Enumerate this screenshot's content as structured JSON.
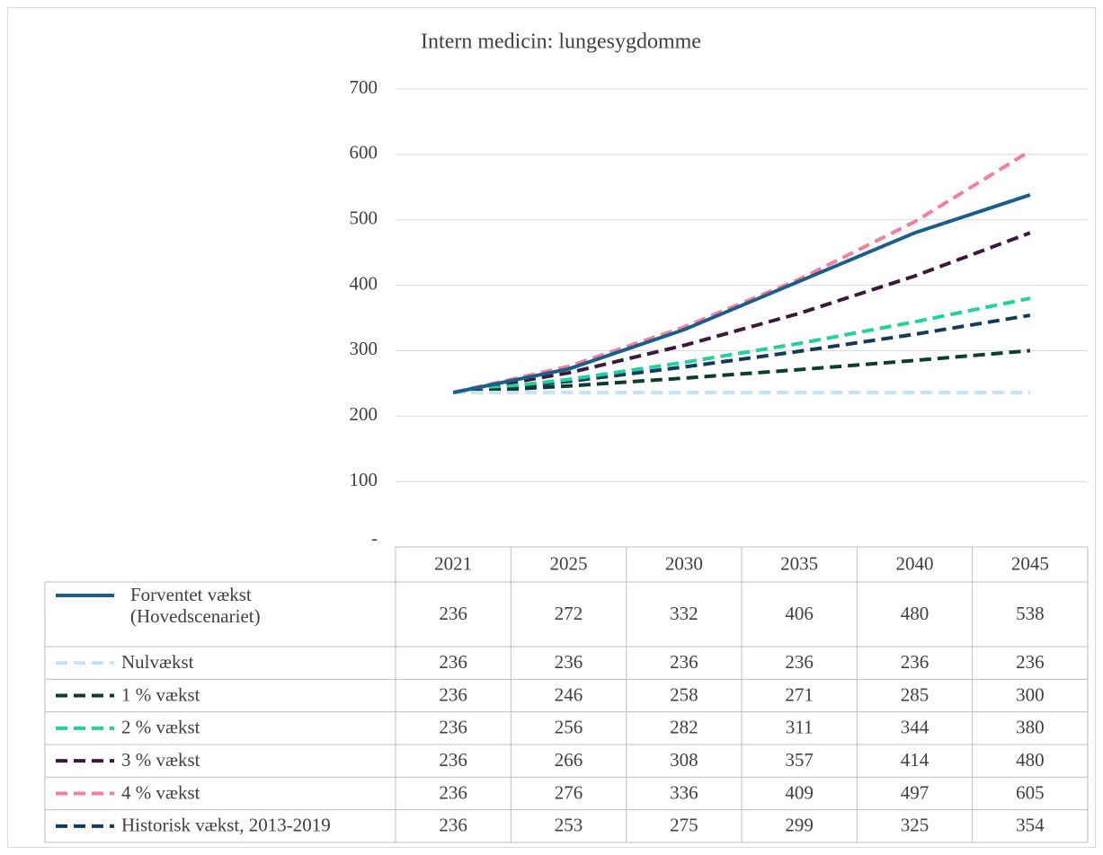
{
  "chart_data": {
    "type": "line",
    "title": "Intern medicin: lungesygdomme",
    "categories": [
      "2021",
      "2025",
      "2030",
      "2035",
      "2040",
      "2045"
    ],
    "ylim": [
      0,
      700
    ],
    "yticks": [
      {
        "value": 0,
        "label": "-"
      },
      100,
      200,
      300,
      400,
      500,
      600,
      700
    ],
    "grid": true,
    "series": [
      {
        "name": "Forventet vækst (Hovedscenariet)",
        "color": "#1a5f8a",
        "dash": false,
        "values": [
          236,
          272,
          332,
          406,
          480,
          538
        ]
      },
      {
        "name": "Nulvækst",
        "color": "#c3e3f6",
        "dash": true,
        "values": [
          236,
          236,
          236,
          236,
          236,
          236
        ]
      },
      {
        "name": "1 % vækst",
        "color": "#0d3d30",
        "dash": true,
        "values": [
          236,
          246,
          258,
          271,
          285,
          300
        ]
      },
      {
        "name": "2 % vækst",
        "color": "#1fd39b",
        "dash": true,
        "values": [
          236,
          256,
          282,
          311,
          344,
          380
        ]
      },
      {
        "name": "3 % vækst",
        "color": "#3a1a3a",
        "dash": true,
        "values": [
          236,
          266,
          308,
          357,
          414,
          480
        ]
      },
      {
        "name": "4 % vækst",
        "color": "#f77e9c",
        "dash": true,
        "values": [
          236,
          276,
          336,
          409,
          497,
          605
        ]
      },
      {
        "name": "Historisk vækst, 2013-2019",
        "color": "#123b5a",
        "dash": true,
        "values": [
          236,
          253,
          275,
          299,
          325,
          354
        ]
      }
    ]
  }
}
